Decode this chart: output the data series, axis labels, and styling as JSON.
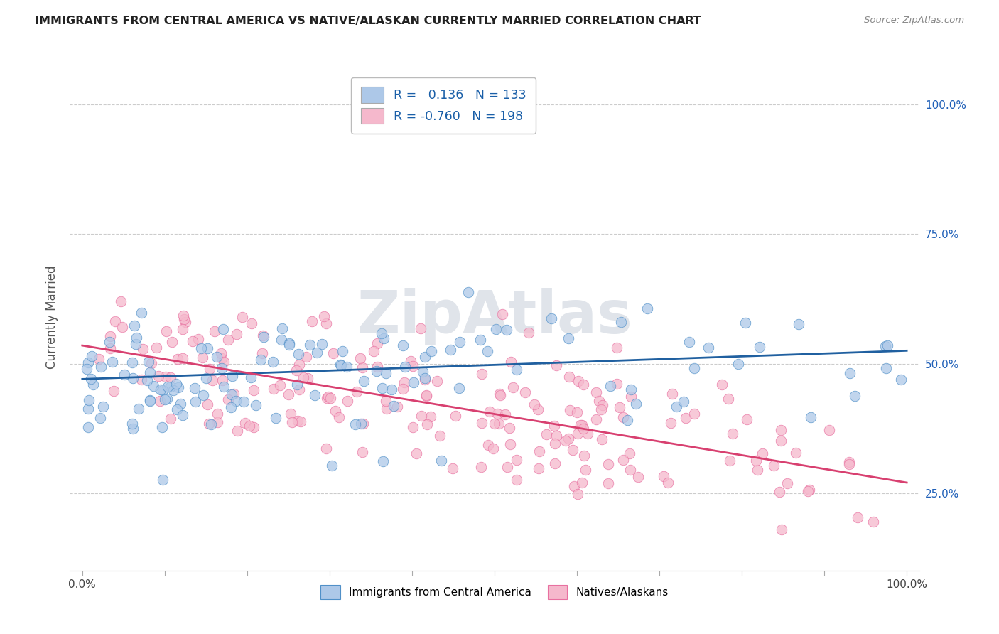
{
  "title": "IMMIGRANTS FROM CENTRAL AMERICA VS NATIVE/ALASKAN CURRENTLY MARRIED CORRELATION CHART",
  "source": "Source: ZipAtlas.com",
  "ylabel": "Currently Married",
  "blue_color": "#adc8e8",
  "pink_color": "#f5b8cc",
  "blue_line_color": "#2060a0",
  "pink_line_color": "#d84070",
  "blue_scatter_edge": "#5090c8",
  "pink_scatter_edge": "#e870a0",
  "watermark": "ZipAtlas",
  "blue_R": 0.136,
  "blue_N": 133,
  "pink_R": -0.76,
  "pink_N": 198,
  "x_min": 0.0,
  "x_max": 1.0,
  "y_min": 0.1,
  "y_max": 1.08,
  "blue_intercept": 0.47,
  "blue_slope": 0.055,
  "pink_intercept": 0.535,
  "pink_slope": -0.265,
  "background_color": "#ffffff",
  "grid_color": "#cccccc"
}
